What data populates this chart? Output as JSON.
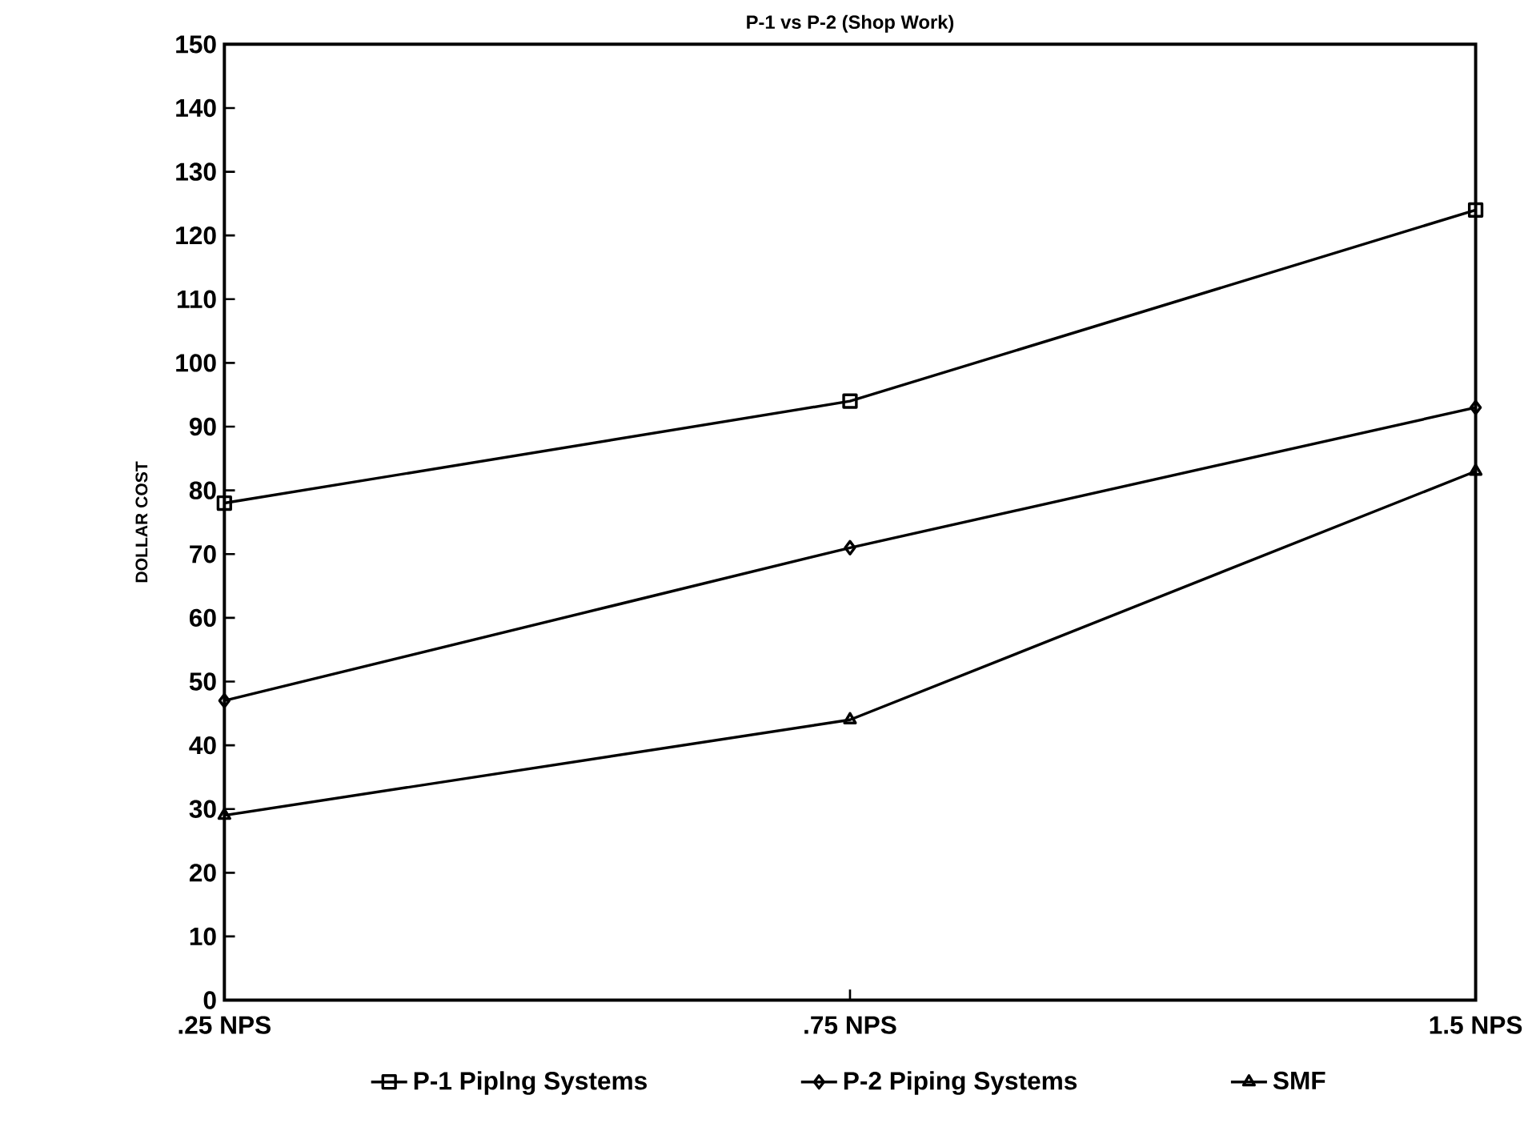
{
  "chart_data": {
    "type": "line",
    "title": "P-1 vs P-2 (Shop Work)",
    "ylabel": "DOLLAR COST",
    "categories": [
      ".25 NPS",
      ".75 NPS",
      "1.5 NPS"
    ],
    "series": [
      {
        "name": "P-1 Piplng Systems",
        "color": "#000000",
        "marker": "square",
        "values": [
          78,
          94,
          124
        ]
      },
      {
        "name": "P-2 Piping Systems",
        "color": "#000000",
        "marker": "diamond",
        "values": [
          47,
          71,
          93
        ]
      },
      {
        "name": "SMF",
        "color": "#000000",
        "marker": "triangle",
        "values": [
          29,
          44,
          83
        ]
      }
    ],
    "ylim": [
      0,
      150
    ],
    "yticks": [
      0,
      10,
      20,
      30,
      40,
      50,
      60,
      70,
      80,
      90,
      100,
      110,
      120,
      130,
      140,
      150
    ],
    "grid": false,
    "legend": "bottom",
    "line_style": "solid"
  }
}
